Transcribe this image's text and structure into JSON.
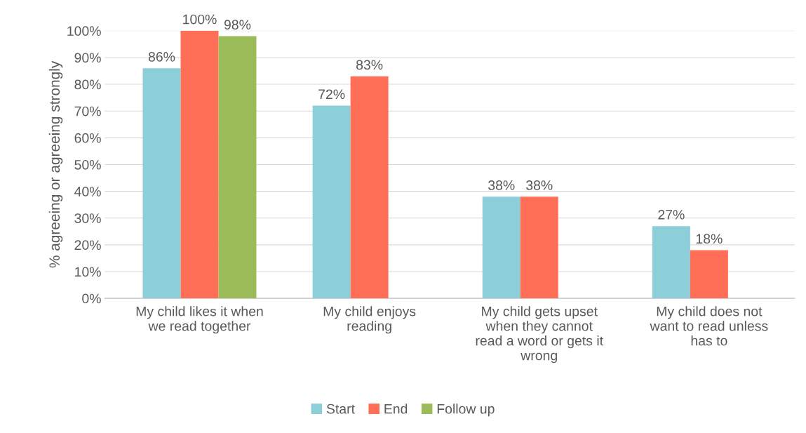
{
  "chart_data": {
    "type": "bar",
    "ylabel": "% agreeing or agreeing strongly",
    "categories": [
      "My child likes it when\nwe read together",
      "My child enjoys\nreading",
      "My child gets upset\nwhen they cannot\nread a word or gets it\nwrong",
      "My child does not\nwant to read unless\nhas to"
    ],
    "series": [
      {
        "name": "Start",
        "color": "#8ccfd9",
        "values": [
          86,
          72,
          38,
          27
        ],
        "value_labels": [
          "86%",
          "72%",
          "38%",
          "27%"
        ]
      },
      {
        "name": "End",
        "color": "#ff6f57",
        "values": [
          100,
          83,
          38,
          18
        ],
        "value_labels": [
          "100%",
          "83%",
          "38%",
          "18%"
        ]
      },
      {
        "name": "Follow up",
        "color": "#9bbb59",
        "values": [
          98,
          null,
          null,
          null
        ],
        "value_labels": [
          "98%",
          null,
          null,
          null
        ]
      }
    ],
    "ylim": [
      0,
      100
    ],
    "yticks": [
      {
        "value": 0,
        "label": "0%"
      },
      {
        "value": 10,
        "label": "10%"
      },
      {
        "value": 20,
        "label": "20%"
      },
      {
        "value": 30,
        "label": "30%"
      },
      {
        "value": 40,
        "label": "40%"
      },
      {
        "value": 50,
        "label": "50%"
      },
      {
        "value": 60,
        "label": "60%"
      },
      {
        "value": 70,
        "label": "70%"
      },
      {
        "value": 80,
        "label": "80%"
      },
      {
        "value": 90,
        "label": "90%"
      },
      {
        "value": 100,
        "label": "100%"
      }
    ],
    "grid": "y",
    "legend": "bottom"
  }
}
